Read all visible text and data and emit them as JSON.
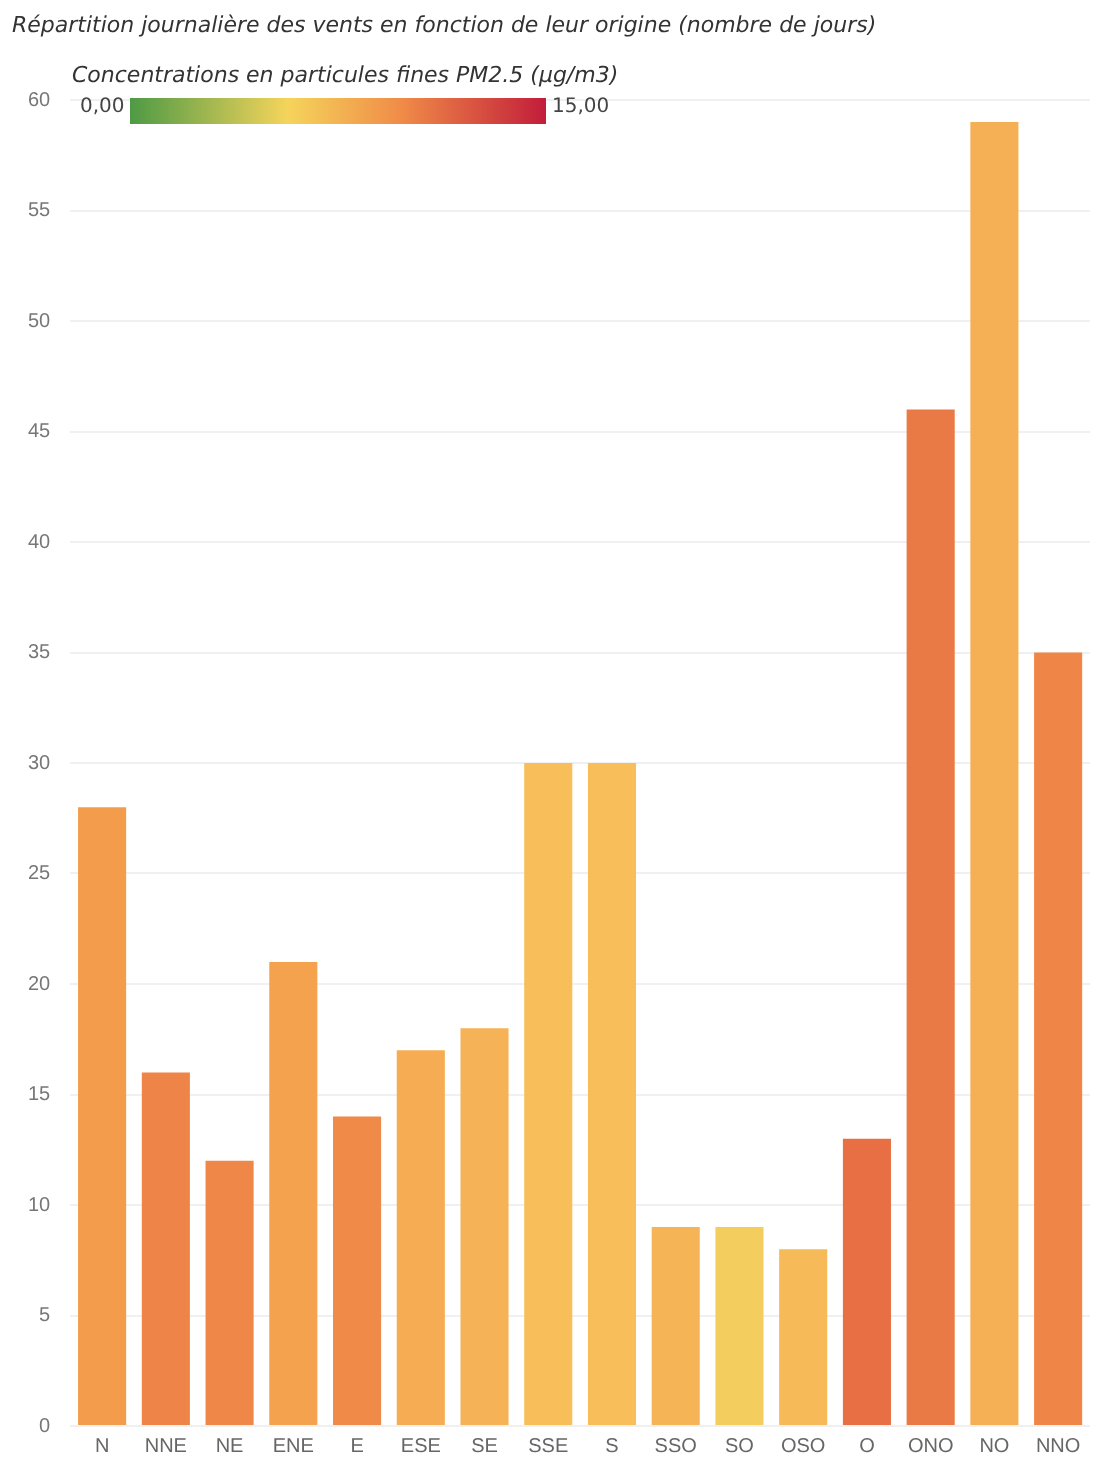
{
  "chart_data": {
    "type": "bar",
    "title": "Répartition journalière des vents en fonction de leur origine (nombre de jours)",
    "clabel": "Concentrations en particules fines PM2.5 (µg/m3)",
    "annotations": [
      "0,00",
      "15,00"
    ],
    "categories": [
      "N",
      "NNE",
      "NE",
      "ENE",
      "E",
      "ESE",
      "SE",
      "SSE",
      "S",
      "SSO",
      "SO",
      "OSO",
      "O",
      "ONO",
      "NO",
      "NNO"
    ],
    "values": [
      28,
      16,
      12,
      21,
      14,
      17,
      18,
      30,
      30,
      9,
      9,
      8,
      13,
      46,
      59,
      35
    ],
    "colors": [
      "#f39c4c",
      "#ee8448",
      "#ef8748",
      "#f4a24e",
      "#ef8a48",
      "#f5ac53",
      "#f6b256",
      "#f7be5a",
      "#f7be5a",
      "#f5b456",
      "#f3ce5e",
      "#f6ba58",
      "#e86f43",
      "#ea7a45",
      "#f5b055",
      "#ef8647"
    ],
    "ylim": [
      0,
      60
    ],
    "yticks": [
      0,
      5,
      10,
      15,
      20,
      25,
      30,
      35,
      40,
      45,
      50,
      55,
      60
    ],
    "grid": "y",
    "legend": false
  }
}
